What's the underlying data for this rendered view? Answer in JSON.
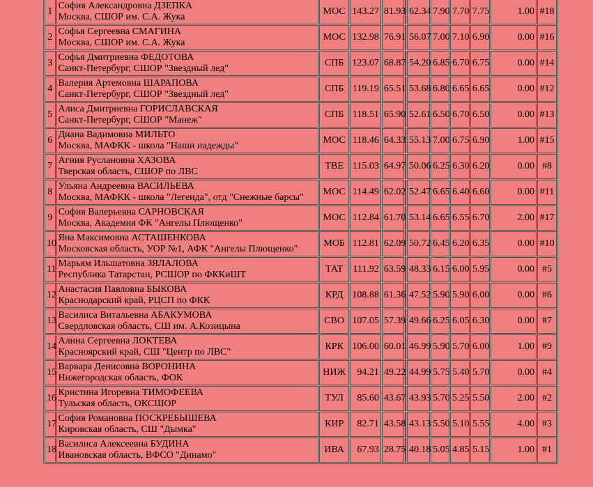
{
  "table": {
    "rows": [
      [
        "1",
        "София Александровна ДЗЕПКА",
        "Москва, СШОР им. С.А. Жука",
        "МОС",
        "143.27",
        "81.93",
        "62.34",
        "7.90",
        "7.70",
        "7.75",
        "1.00",
        "#18"
      ],
      [
        "2",
        "Софья Сергеевна СМАГИНА",
        "Москва, СШОР им. С.А. Жука",
        "МОС",
        "132.98",
        "76.91",
        "56.07",
        "7.00",
        "7.10",
        "6.90",
        "0.00",
        "#16"
      ],
      [
        "3",
        "Софья Дмитриевна ФЕДОТОВА",
        "Санкт-Петербург, СШОР \"Звездный лед\"",
        "СПБ",
        "123.07",
        "68.87",
        "54.20",
        "6.85",
        "6.70",
        "6.75",
        "0.00",
        "#14"
      ],
      [
        "4",
        "Валерия Артемовна ШАРАПОВА",
        "Санкт-Петербург, СШОР \"Звездный лед\"",
        "СПБ",
        "119.19",
        "65.51",
        "53.68",
        "6.80",
        "6.65",
        "6.65",
        "0.00",
        "#12"
      ],
      [
        "5",
        "Алиса Дмитриевна ГОРИСЛАВСКАЯ",
        "Санкт-Петербург, СШОР \"Манеж\"",
        "СПБ",
        "118.51",
        "65.90",
        "52.61",
        "6.50",
        "6.70",
        "6.50",
        "0.00",
        "#13"
      ],
      [
        "6",
        "Диана Вадимовна МИЛЬТО",
        "Москва, МАФКК - школа \"Наши надежды\"",
        "МОС",
        "118.46",
        "64.33",
        "55.13",
        "7.00",
        "6.75",
        "6.90",
        "1.00",
        "#15"
      ],
      [
        "7",
        "Агния Руслановна ХАЗОВА",
        "Тверская область, СШОР по ЛВС",
        "ТВЕ",
        "115.03",
        "64.97",
        "50.06",
        "6.25",
        "6.30",
        "6.20",
        "0.00",
        "#8"
      ],
      [
        "8",
        "Ульяна Андреевна ВАСИЛЬЕВА",
        "Москва, МАФКК - школа \"Легенда\", отд \"Снежные барсы\"",
        "МОС",
        "114.49",
        "62.02",
        "52.47",
        "6.65",
        "6.40",
        "6.60",
        "0.00",
        "#11"
      ],
      [
        "9",
        "София Валерьевна САРНОВСКАЯ",
        "Москва, Академия ФК \"Ангелы Плющенко\"",
        "МОС",
        "112.84",
        "61.70",
        "53.14",
        "6.65",
        "6.55",
        "6.70",
        "2.00",
        "#17"
      ],
      [
        "10",
        "Яна Максимовна АСТАШЕНКОВА",
        "Московская область, УОР №1, АФК \"Ангелы Плющенко\"",
        "МОБ",
        "112.81",
        "62.09",
        "50.72",
        "6.45",
        "6.20",
        "6.35",
        "0.00",
        "#10"
      ],
      [
        "11",
        "Марьям Ильшатовна ЗЯЛАЛОВА",
        "Республика Татарстан, РСШОР по ФККиШТ",
        "ТАТ",
        "111.92",
        "63.59",
        "48.33",
        "6.15",
        "6.00",
        "5.95",
        "0.00",
        "#5"
      ],
      [
        "12",
        "Анастасия Павловна БЫКОВА",
        "Краснодарский край, РЦСП по ФКК",
        "КРД",
        "108.88",
        "61.36",
        "47.52",
        "5.90",
        "5.90",
        "6.00",
        "0.00",
        "#6"
      ],
      [
        "13",
        "Василиса Витальевна АБАКУМОВА",
        "Свердловская область, СШ им. А.Козицына",
        "СВО",
        "107.05",
        "57.39",
        "49.66",
        "6.25",
        "6.05",
        "6.30",
        "0.00",
        "#7"
      ],
      [
        "14",
        "Алина Сергеевна ЛОКТЕВА",
        "Красноярский край, СШ \"Центр по ЛВС\"",
        "КРК",
        "106.00",
        "60.01",
        "46.99",
        "5.90",
        "5.70",
        "6.00",
        "1.00",
        "#9"
      ],
      [
        "15",
        "Варвара Денисовна ВОРОНИНА",
        "Нижегородская область, ФОК",
        "НИЖ",
        "94.21",
        "49.22",
        "44.99",
        "5.75",
        "5.40",
        "5.70",
        "0.00",
        "#4"
      ],
      [
        "16",
        "Кристина Игоревна ТИМОФЕЕВА",
        "Тульская область, ОКСШОР",
        "ТУЛ",
        "85.60",
        "43.67",
        "43.93",
        "5.70",
        "5.25",
        "5.50",
        "2.00",
        "#2"
      ],
      [
        "17",
        "София Романовна ПОСКРЕБЫШЕВА",
        "Кировская область, СШ \"Дымка\"",
        "КИР",
        "82.71",
        "43.58",
        "43.13",
        "5.50",
        "5.10",
        "5.55",
        "4.00",
        "#3"
      ],
      [
        "18",
        "Василиса Алексеевна БУДИНА",
        "Ивановская область, ВФСО \"Динамо\"",
        "ИВА",
        "67.93",
        "28.75",
        "40.18",
        "5.05",
        "4.85",
        "5.15",
        "1.00",
        "#1"
      ]
    ]
  }
}
